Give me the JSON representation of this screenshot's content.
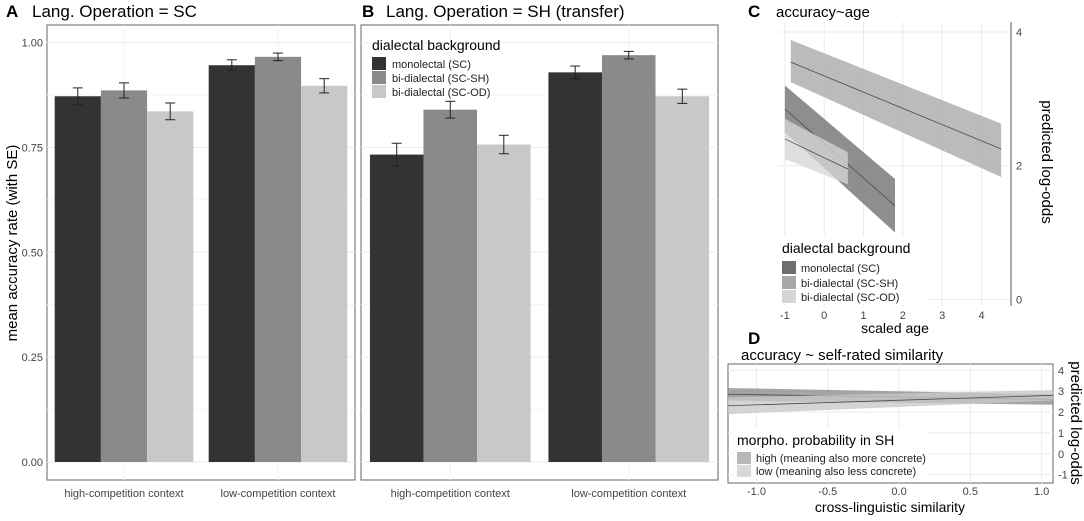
{
  "chart_data": [
    {
      "id": "A",
      "type": "bar",
      "panel_label": "A",
      "title": "Lang. Operation = SC",
      "ylabel": "mean accuracy rate (with SE)",
      "xlabel": "",
      "ylim": [
        0,
        1.03
      ],
      "yticks": [
        "0.00",
        "0.25",
        "0.50",
        "0.75",
        "1.00"
      ],
      "ytick_values": [
        0,
        0.25,
        0.5,
        0.75,
        1.0
      ],
      "categories": [
        "high-competition context",
        "low-competition context"
      ],
      "series": [
        {
          "name": "monolectal (SC)",
          "color": "#333333",
          "values": [
            0.872,
            0.946
          ],
          "se": [
            0.02,
            0.013
          ]
        },
        {
          "name": "bi-dialectal (SC-SH)",
          "color": "#8a8a8a",
          "values": [
            0.886,
            0.966
          ],
          "se": [
            0.018,
            0.009
          ]
        },
        {
          "name": "bi-dialectal (SC-OD)",
          "color": "#c8c8c8",
          "values": [
            0.836,
            0.897
          ],
          "se": [
            0.02,
            0.017
          ]
        }
      ]
    },
    {
      "id": "B",
      "type": "bar",
      "panel_label": "B",
      "title": "Lang. Operation = SH (transfer)",
      "xlabel": "",
      "ylim": [
        0,
        1.03
      ],
      "categories": [
        "high-competition context",
        "low-competition context"
      ],
      "legend": {
        "title": "dialectal background",
        "position": "top-left"
      },
      "series": [
        {
          "name": "monolectal (SC)",
          "color": "#333333",
          "values": [
            0.733,
            0.929
          ],
          "se": [
            0.027,
            0.015
          ]
        },
        {
          "name": "bi-dialectal (SC-SH)",
          "color": "#8a8a8a",
          "values": [
            0.84,
            0.97
          ],
          "se": [
            0.02,
            0.009
          ]
        },
        {
          "name": "bi-dialectal (SC-OD)",
          "color": "#c8c8c8",
          "values": [
            0.757,
            0.872
          ],
          "se": [
            0.022,
            0.017
          ]
        }
      ]
    },
    {
      "id": "C",
      "type": "line",
      "panel_label": "C",
      "title": "accuracy~age",
      "xlabel": "scaled age",
      "ylabel": "predicted log-odds",
      "xlim": [
        -1.15,
        4.75
      ],
      "ylim": [
        -0.1,
        4.15
      ],
      "xticks": [
        "-1",
        "0",
        "1",
        "2",
        "3",
        "4"
      ],
      "xtick_values": [
        -1,
        0,
        1,
        2,
        3,
        4
      ],
      "yticks": [
        "0",
        "2",
        "4"
      ],
      "ytick_values": [
        0,
        2,
        4
      ],
      "legend": {
        "title": "dialectal background",
        "position": "bottom-left"
      },
      "series": [
        {
          "name": "monolectal (SC)",
          "color": "#6e6e6e",
          "x": [
            -1,
            1.8
          ],
          "y": [
            2.85,
            1.4
          ],
          "lower": [
            2.5,
            1.0
          ],
          "upper": [
            3.2,
            1.8
          ]
        },
        {
          "name": "bi-dialectal (SC-SH)",
          "color": "#a8a8a8",
          "x": [
            -0.85,
            4.5
          ],
          "y": [
            3.55,
            2.25
          ],
          "lower": [
            3.25,
            1.83
          ],
          "upper": [
            3.88,
            2.63
          ]
        },
        {
          "name": "bi-dialectal (SC-OD)",
          "color": "#d6d6d6",
          "x": [
            -1,
            0.6
          ],
          "y": [
            2.4,
            1.95
          ],
          "lower": [
            2.1,
            1.72
          ],
          "upper": [
            2.7,
            2.2
          ]
        }
      ]
    },
    {
      "id": "D",
      "type": "line",
      "panel_label": "D",
      "title": "accuracy ~ self-rated similarity",
      "xlabel": "cross-linguistic similarity",
      "ylabel": "predicted log-odds",
      "xlim": [
        -1.2,
        1.08
      ],
      "ylim": [
        -1.4,
        4.3
      ],
      "xticks": [
        "-1.0",
        "-0.5",
        "0.0",
        "0.5",
        "1.0"
      ],
      "xtick_values": [
        -1,
        -0.5,
        0,
        0.5,
        1
      ],
      "yticks": [
        "-1",
        "0",
        "1",
        "2",
        "3",
        "4"
      ],
      "ytick_values": [
        -1,
        0,
        1,
        2,
        3,
        4
      ],
      "legend": {
        "title": "morpho. probability in SH",
        "position": "bottom-left"
      },
      "series": [
        {
          "name": "high (meaning also more concrete)",
          "color": "#8c8c8c",
          "x": [
            -1.2,
            1.08
          ],
          "y": [
            2.85,
            2.6
          ],
          "lower": [
            2.55,
            2.35
          ],
          "upper": [
            3.15,
            2.85
          ]
        },
        {
          "name": "low (meaning also less concrete)",
          "color": "#c8c8c8",
          "x": [
            -1.2,
            1.08
          ],
          "y": [
            2.3,
            2.8
          ],
          "lower": [
            1.9,
            2.55
          ],
          "upper": [
            2.7,
            3.05
          ]
        }
      ]
    }
  ]
}
